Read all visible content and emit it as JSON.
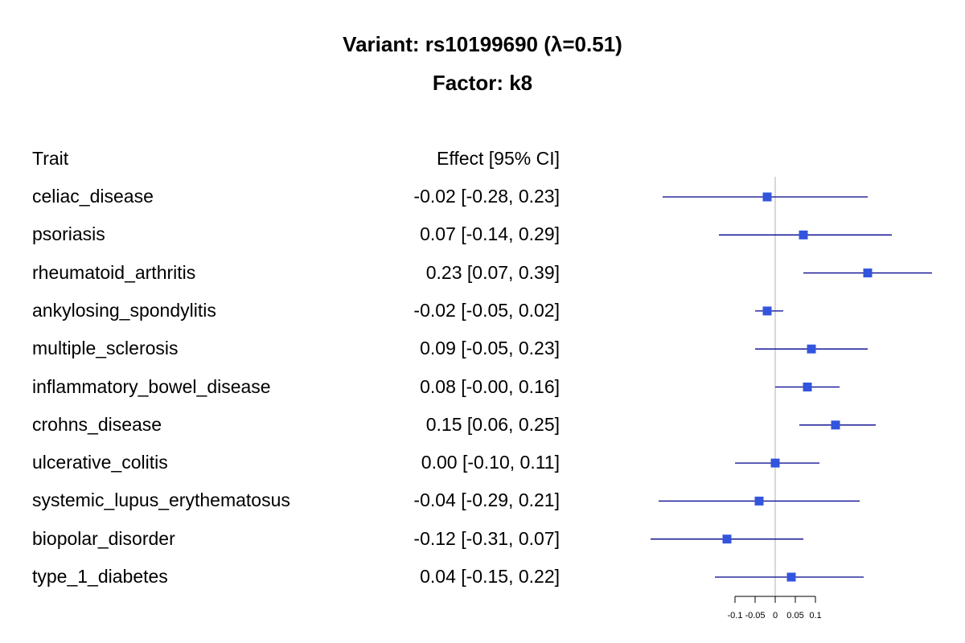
{
  "title": "Variant: rs10199690 (λ=0.51)",
  "subtitle": "Factor: k8",
  "headers": {
    "trait": "Trait",
    "effect": "Effect [95% CI]"
  },
  "colors": {
    "ci_line": "#00008b",
    "point": "#3355dd",
    "ref_line": "#cccccc"
  },
  "chart_data": {
    "type": "forest",
    "title": "Variant: rs10199690 (λ=0.51)",
    "subtitle": "Factor: k8",
    "reference_line": 0,
    "xlim": [
      -0.3,
      0.39
    ],
    "x_ticks": [
      -0.1,
      -0.05,
      0,
      0.05,
      0.1
    ],
    "x_tick_labels": [
      "-0.1",
      "-0.05",
      "0",
      "0.05",
      "0.1"
    ],
    "rows": [
      {
        "trait": "celiac_disease",
        "effect": -0.02,
        "lower": -0.28,
        "upper": 0.23,
        "label": "-0.02 [-0.28, 0.23]"
      },
      {
        "trait": "psoriasis",
        "effect": 0.07,
        "lower": -0.14,
        "upper": 0.29,
        "label": "0.07 [-0.14, 0.29]"
      },
      {
        "trait": "rheumatoid_arthritis",
        "effect": 0.23,
        "lower": 0.07,
        "upper": 0.39,
        "label": "0.23 [0.07, 0.39]"
      },
      {
        "trait": "ankylosing_spondylitis",
        "effect": -0.02,
        "lower": -0.05,
        "upper": 0.02,
        "label": "-0.02 [-0.05, 0.02]"
      },
      {
        "trait": "multiple_sclerosis",
        "effect": 0.09,
        "lower": -0.05,
        "upper": 0.23,
        "label": "0.09 [-0.05, 0.23]"
      },
      {
        "trait": "inflammatory_bowel_disease",
        "effect": 0.08,
        "lower": -0.0,
        "upper": 0.16,
        "label": "0.08 [-0.00, 0.16]"
      },
      {
        "trait": "crohns_disease",
        "effect": 0.15,
        "lower": 0.06,
        "upper": 0.25,
        "label": "0.15 [0.06, 0.25]"
      },
      {
        "trait": "ulcerative_colitis",
        "effect": 0.0,
        "lower": -0.1,
        "upper": 0.11,
        "label": "0.00 [-0.10, 0.11]"
      },
      {
        "trait": "systemic_lupus_erythematosus",
        "effect": -0.04,
        "lower": -0.29,
        "upper": 0.21,
        "label": "-0.04 [-0.29, 0.21]"
      },
      {
        "trait": "biopolar_disorder",
        "effect": -0.12,
        "lower": -0.31,
        "upper": 0.07,
        "label": "-0.12 [-0.31, 0.07]"
      },
      {
        "trait": "type_1_diabetes",
        "effect": 0.04,
        "lower": -0.15,
        "upper": 0.22,
        "label": "0.04 [-0.15, 0.22]"
      }
    ]
  }
}
